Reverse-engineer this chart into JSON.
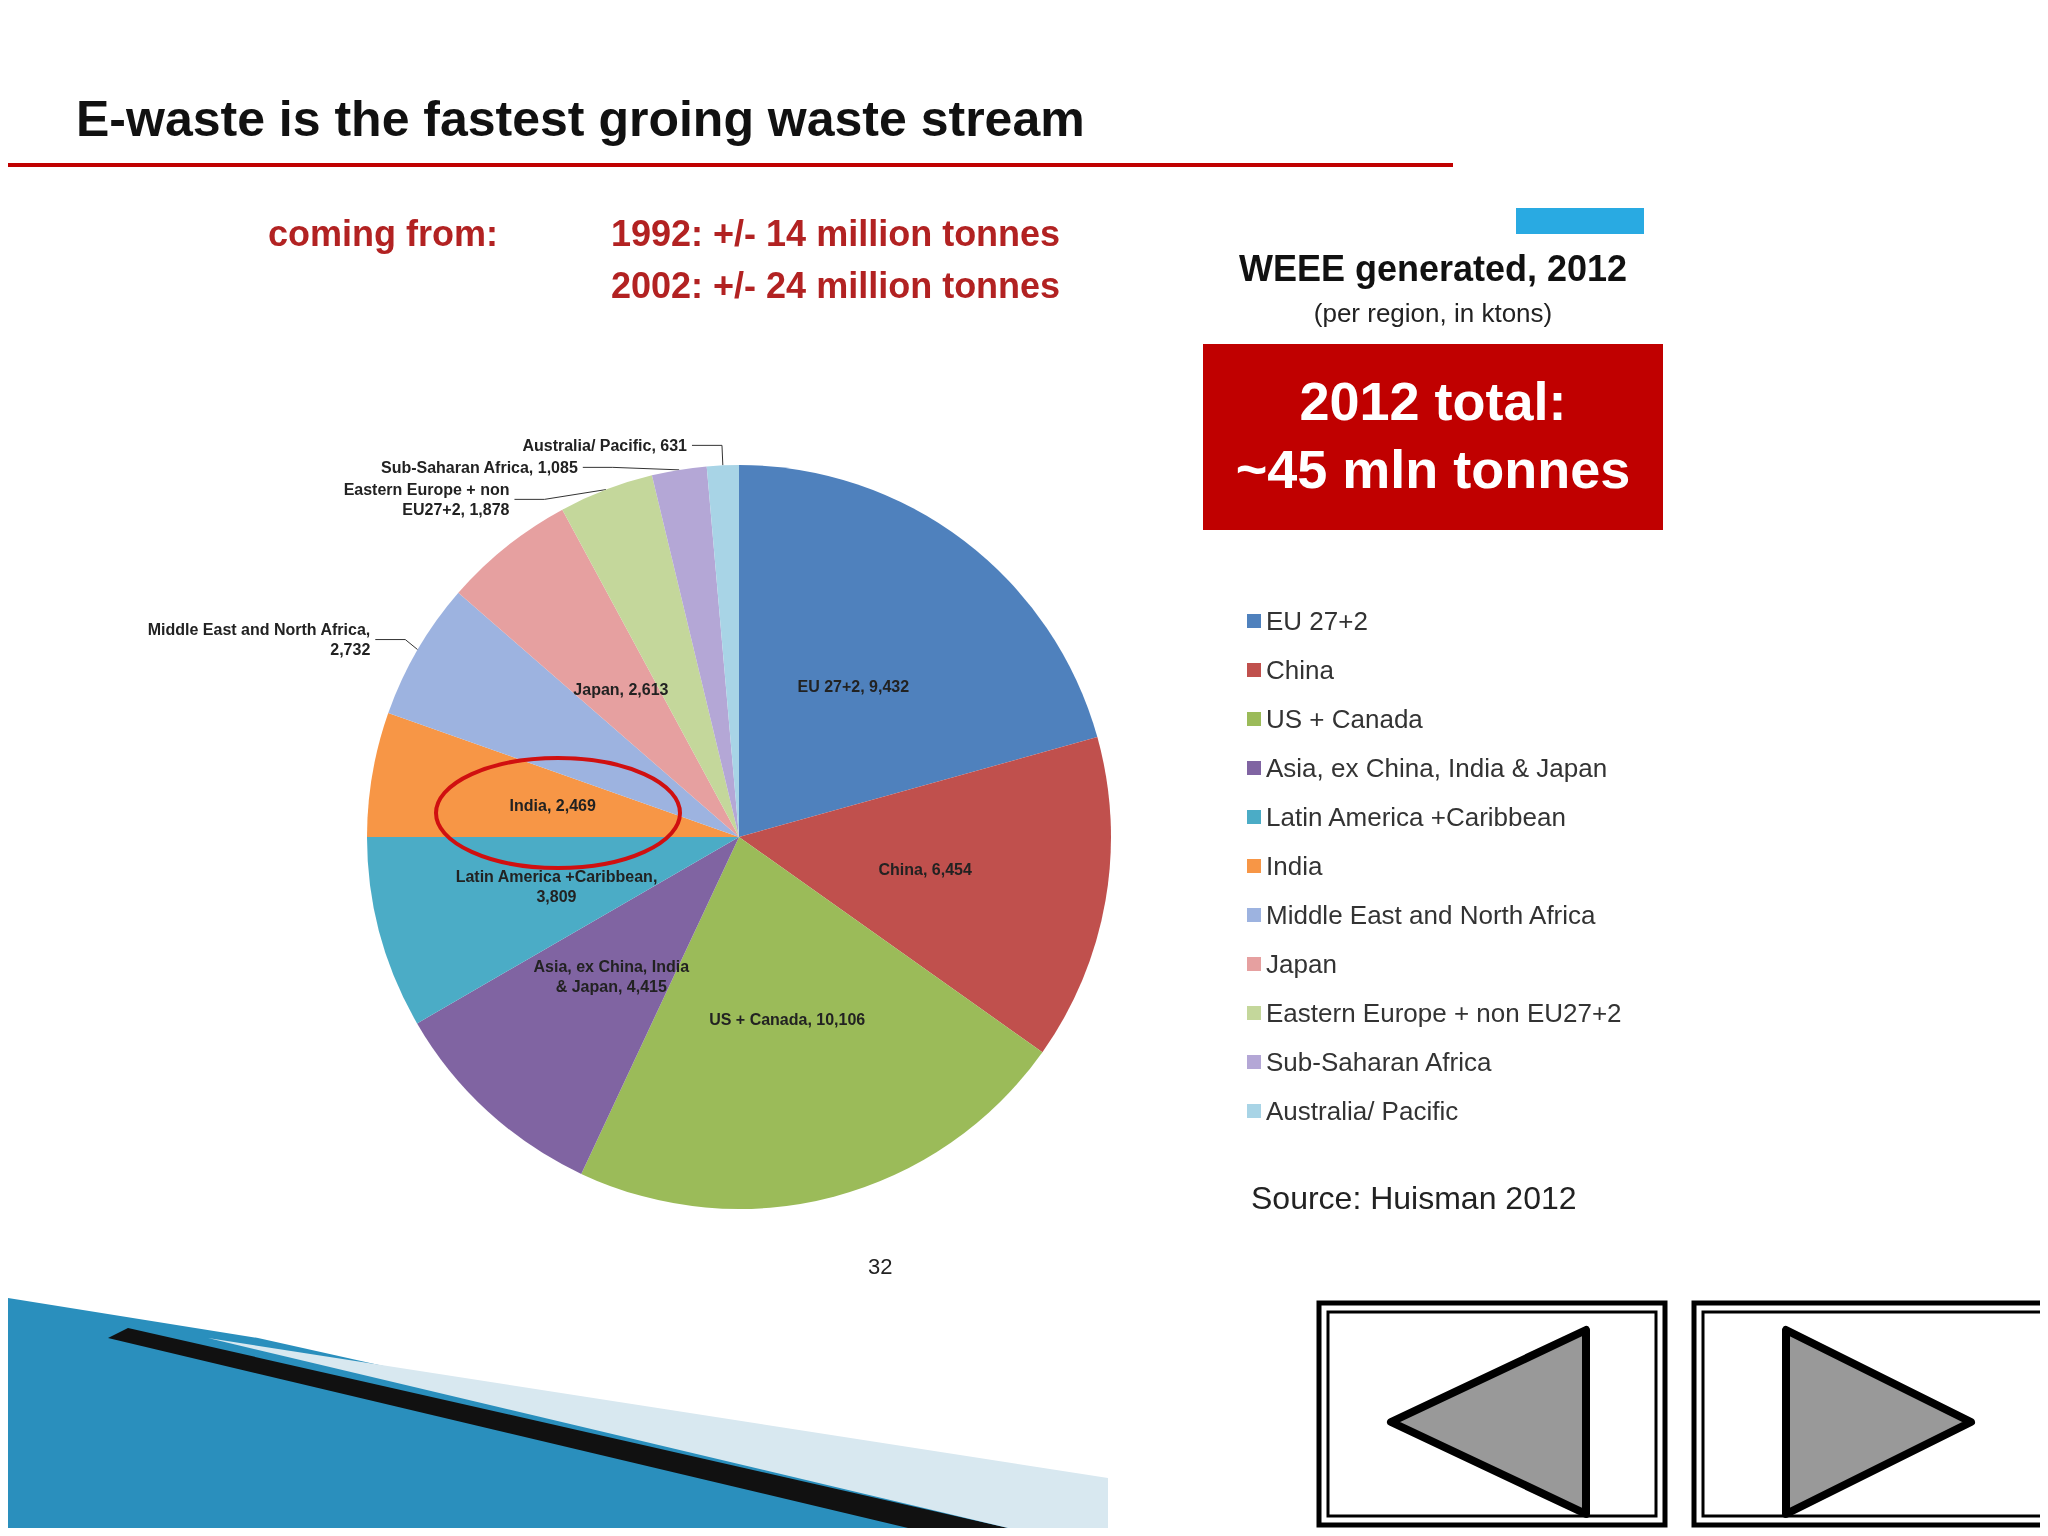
{
  "chart_data": {
    "type": "pie",
    "title": "E-waste is the fastest groing waste stream",
    "subtitle": "WEEE generated, 2012",
    "categories": [
      "EU 27+2",
      "China",
      "US + Canada",
      "Asia, ex China, India & Japan",
      "Latin America +Caribbean",
      "India",
      "Middle East and North Africa",
      "Japan",
      "Eastern Europe + non EU27+2",
      "Sub-Saharan Africa",
      "Australia/ Pacific"
    ],
    "values": [
      9432,
      6454,
      10106,
      4415,
      3809,
      2469,
      2732,
      2613,
      1878,
      1085,
      631
    ],
    "colors": [
      "#4f81bd",
      "#c0504d",
      "#9bbb59",
      "#8064a2",
      "#4bacc6",
      "#f79646",
      "#9db3e0",
      "#e6a0a0",
      "#c4d79b",
      "#b4a7d6",
      "#a8d4e6"
    ],
    "value_labels": [
      "EU 27+2, 9,432",
      "China, 6,454",
      "US + Canada, 10,106",
      "Asia, ex China, India\n& Japan, 4,415",
      "Latin America +Caribbean,\n3,809",
      "India, 2,469",
      "Middle East and North Africa,\n2,732",
      "Japan, 2,613",
      "Eastern Europe + non\nEU27+2, 1,878",
      "Sub-Saharan Africa, 1,085",
      "Australia/ Pacific, 631"
    ],
    "legend": "right",
    "annotations": [
      "coming from:",
      "1992: +/- 14 million tonnes",
      "2002: +/- 24 million tonnes",
      "(per region, in ktons)",
      "2012 total:",
      "~45 mln tonnes",
      "Source: Huisman 2012",
      "32"
    ]
  }
}
